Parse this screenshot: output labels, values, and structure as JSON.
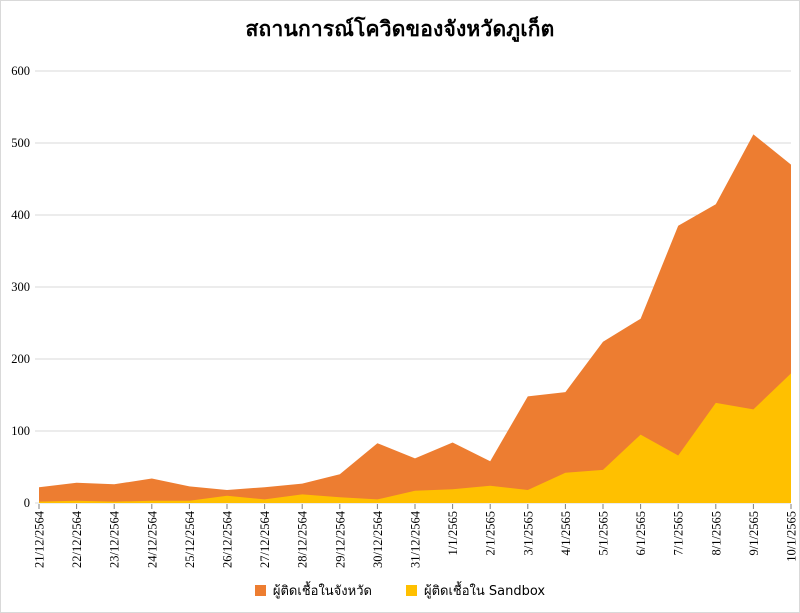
{
  "chart_data": {
    "type": "area",
    "title": "สถานการณ์โควิดของจังหวัดภูเก็ต",
    "overlap_mode": "overlaid",
    "grid": true,
    "legend_position": "bottom",
    "xlabel": "",
    "ylabel": "",
    "ylim": [
      0,
      600
    ],
    "y_ticks": [
      0,
      100,
      200,
      300,
      400,
      500,
      600
    ],
    "gridline_color": "#D9D9D9",
    "tick_color": "#7F7F7F",
    "axis_text_color": "#000000",
    "categories": [
      "21/12/2564",
      "22/12/2564",
      "23/12/2564",
      "24/12/2564",
      "25/12/2564",
      "26/12/2564",
      "27/12/2564",
      "28/12/2564",
      "29/12/2564",
      "30/12/2564",
      "31/12/2564",
      "1/1/2565",
      "2/1/2565",
      "3/1/2565",
      "4/1/2565",
      "5/1/2565",
      "6/1/2565",
      "7/1/2565",
      "8/1/2565",
      "9/1/2565",
      "10/1/2565"
    ],
    "series": [
      {
        "name": "ผู้ติดเชื้อในจังหวัด",
        "color": "#ED7D31",
        "values": [
          22,
          28,
          26,
          34,
          23,
          18,
          22,
          27,
          40,
          83,
          62,
          84,
          58,
          148,
          154,
          224,
          256,
          385,
          415,
          512,
          470
        ]
      },
      {
        "name": "ผู้ติดเชื้อใน Sandbox",
        "color": "#FFC000",
        "values": [
          2,
          3,
          2,
          3,
          3,
          10,
          5,
          12,
          8,
          5,
          17,
          19,
          24,
          18,
          42,
          46,
          95,
          66,
          139,
          130,
          180
        ]
      }
    ]
  }
}
